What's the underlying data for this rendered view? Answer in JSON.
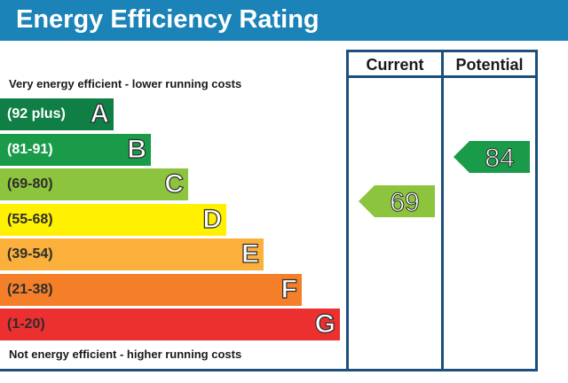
{
  "title": "Energy Efficiency Rating",
  "top_caption": "Very energy efficient - lower running costs",
  "bottom_caption": "Not energy efficient - higher running costs",
  "columns": {
    "current": "Current",
    "potential": "Potential"
  },
  "colors": {
    "title_bar": "#1b83b7",
    "frame": "#1c4f7c"
  },
  "chart_data": {
    "type": "bar",
    "categories": [
      "A",
      "B",
      "C",
      "D",
      "E",
      "F",
      "G"
    ],
    "bands": [
      {
        "letter": "A",
        "range": "(92 plus)",
        "color": "#0f7f46",
        "text_color": "#ffffff"
      },
      {
        "letter": "B",
        "range": "(81-91)",
        "color": "#1a9b4a",
        "text_color": "#ffffff"
      },
      {
        "letter": "C",
        "range": "(69-80)",
        "color": "#8cc43e",
        "text_color": "#2d2d2d"
      },
      {
        "letter": "D",
        "range": "(55-68)",
        "color": "#fff101",
        "text_color": "#2d2d2d"
      },
      {
        "letter": "E",
        "range": "(39-54)",
        "color": "#fbb03b",
        "text_color": "#2d2d2d"
      },
      {
        "letter": "F",
        "range": "(21-38)",
        "color": "#f47f28",
        "text_color": "#2d2d2d"
      },
      {
        "letter": "G",
        "range": "(1-20)",
        "color": "#ec2f2f",
        "text_color": "#2d2d2d"
      }
    ],
    "current": {
      "value": 69,
      "band": "C",
      "color": "#8cc43e"
    },
    "potential": {
      "value": 84,
      "band": "B",
      "color": "#1a9b4a"
    }
  }
}
